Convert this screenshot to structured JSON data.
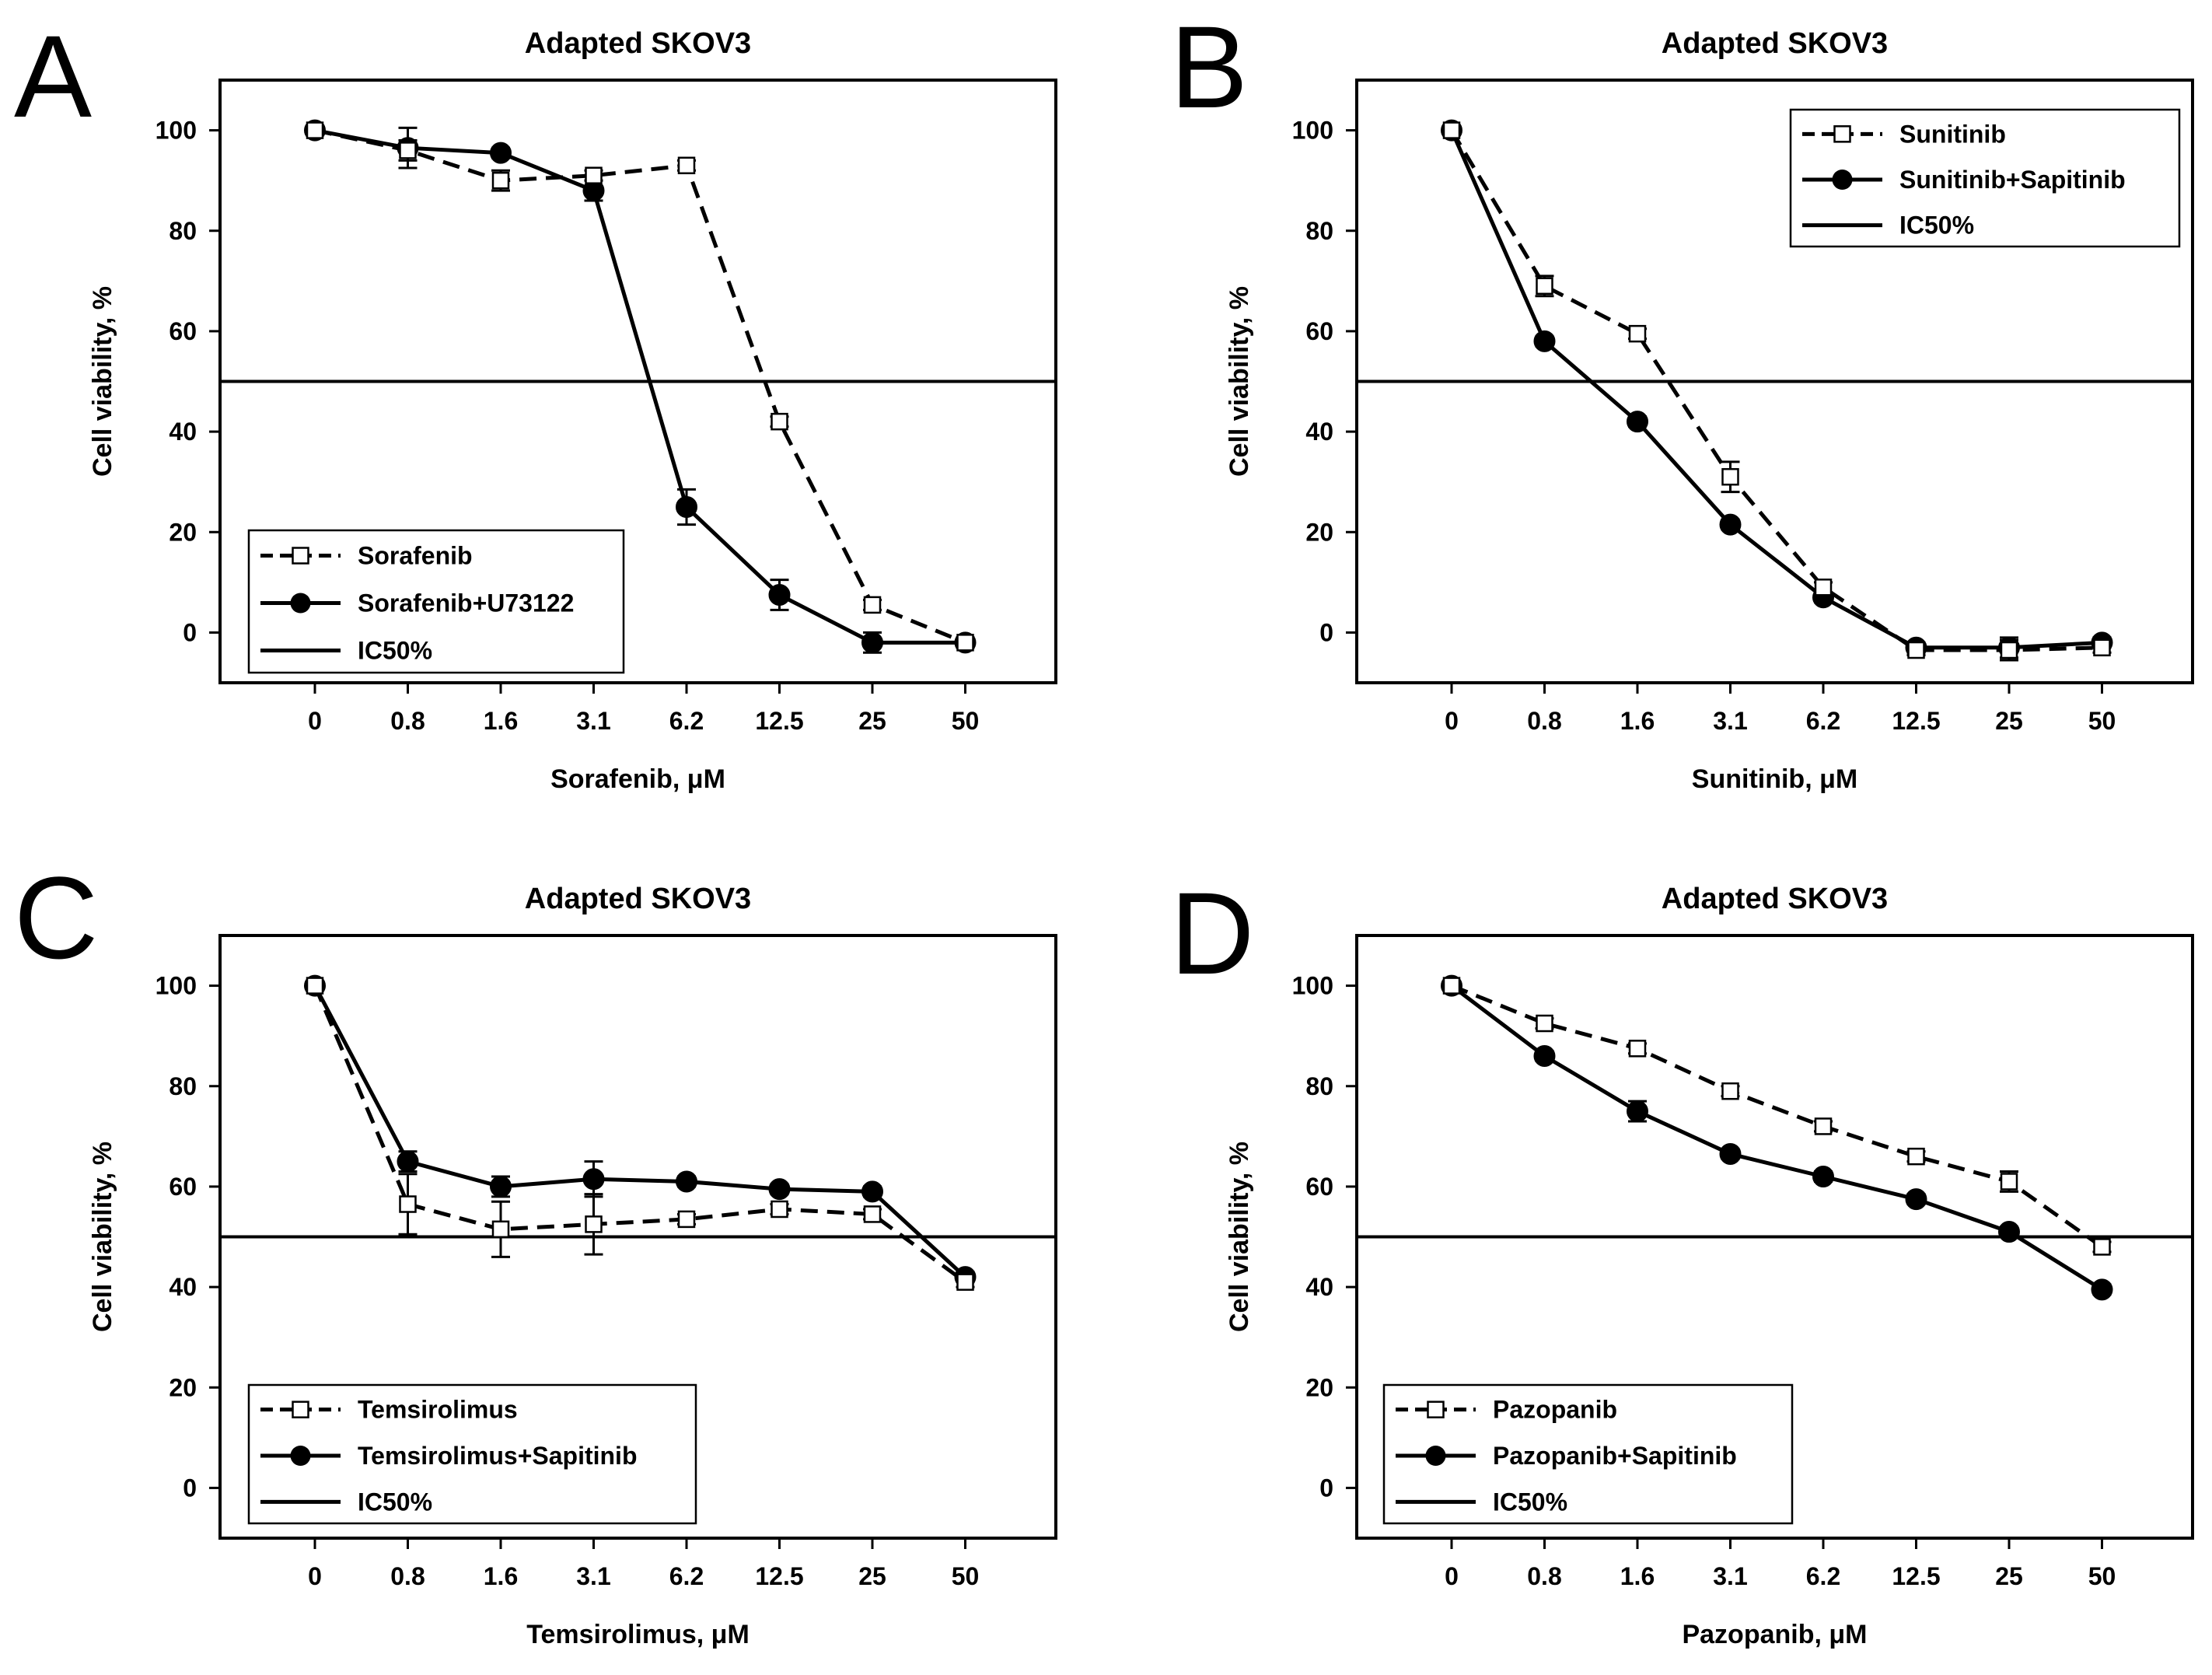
{
  "figure": {
    "panels": [
      "A",
      "B",
      "C",
      "D"
    ]
  },
  "colors": {
    "line": "#000000",
    "open_marker_fill": "#ffffff",
    "filled_marker_fill": "#000000",
    "background": "#ffffff"
  },
  "chart_data": [
    {
      "panel": "A",
      "type": "line",
      "title": "Adapted SKOV3",
      "xlabel": "Sorafenib, μM",
      "ylabel": "Cell viability, %",
      "categories": [
        "0",
        "0.8",
        "1.6",
        "3.1",
        "6.2",
        "12.5",
        "25",
        "50"
      ],
      "ylim": [
        -10,
        110
      ],
      "yticks": [
        0,
        20,
        40,
        60,
        80,
        100
      ],
      "ic50": 50,
      "legend_position": "bottom-left",
      "legend": [
        "Sorafenib",
        "Sorafenib+U73122",
        "IC50%"
      ],
      "series": [
        {
          "name": "Sorafenib",
          "style": "dashed",
          "marker": "open-square",
          "values": [
            100,
            96,
            90,
            91,
            93,
            42,
            5.5,
            -2
          ],
          "errors": [
            0,
            2,
            2,
            1,
            1,
            1,
            1,
            1
          ]
        },
        {
          "name": "Sorafenib+U73122",
          "style": "solid",
          "marker": "filled-circle",
          "values": [
            100,
            96.5,
            95.5,
            88,
            25,
            7.5,
            -2,
            -2
          ],
          "errors": [
            0,
            4,
            1,
            2,
            3.5,
            3,
            2,
            1
          ]
        }
      ]
    },
    {
      "panel": "B",
      "type": "line",
      "title": "Adapted SKOV3",
      "xlabel": "Sunitinib, μM",
      "ylabel": "Cell viability, %",
      "categories": [
        "0",
        "0.8",
        "1.6",
        "3.1",
        "6.2",
        "12.5",
        "25",
        "50"
      ],
      "ylim": [
        -10,
        110
      ],
      "yticks": [
        0,
        20,
        40,
        60,
        80,
        100
      ],
      "ic50": 50,
      "legend_position": "top-right",
      "legend": [
        "Sunitinib",
        "Sunitinib+Sapitinib",
        "IC50%"
      ],
      "series": [
        {
          "name": "Sunitinib",
          "style": "dashed",
          "marker": "open-square",
          "values": [
            100,
            69,
            59.5,
            31,
            9,
            -3.5,
            -3.5,
            -3
          ],
          "errors": [
            0,
            2,
            1,
            3,
            1,
            1,
            2,
            1
          ]
        },
        {
          "name": "Sunitinib+Sapitinib",
          "style": "solid",
          "marker": "filled-circle",
          "values": [
            100,
            58,
            42,
            21.5,
            7,
            -3,
            -3,
            -2
          ],
          "errors": [
            0,
            1,
            1,
            1,
            1,
            1,
            2,
            1
          ]
        }
      ]
    },
    {
      "panel": "C",
      "type": "line",
      "title": "Adapted SKOV3",
      "xlabel": "Temsirolimus, μM",
      "ylabel": "Cell viability, %",
      "categories": [
        "0",
        "0.8",
        "1.6",
        "3.1",
        "6.2",
        "12.5",
        "25",
        "50"
      ],
      "ylim": [
        -10,
        110
      ],
      "yticks": [
        0,
        20,
        40,
        60,
        80,
        100
      ],
      "ic50": 50,
      "legend_position": "bottom-left",
      "legend": [
        "Temsirolimus",
        "Temsirolimus+Sapitinib",
        "IC50%"
      ],
      "series": [
        {
          "name": "Temsirolimus",
          "style": "dashed",
          "marker": "open-square",
          "values": [
            100,
            56.5,
            51.5,
            52.5,
            53.5,
            55.5,
            54.5,
            41
          ],
          "errors": [
            0,
            6,
            5.5,
            6,
            1,
            1,
            1,
            1
          ]
        },
        {
          "name": "Temsirolimus+Sapitinib",
          "style": "solid",
          "marker": "filled-circle",
          "values": [
            100,
            65,
            60,
            61.5,
            61,
            59.5,
            59,
            42
          ],
          "errors": [
            0,
            2,
            2,
            3.5,
            1,
            1,
            1,
            1
          ]
        }
      ]
    },
    {
      "panel": "D",
      "type": "line",
      "title": "Adapted SKOV3",
      "xlabel": "Pazopanib, μM",
      "ylabel": "Cell viability, %",
      "categories": [
        "0",
        "0.8",
        "1.6",
        "3.1",
        "6.2",
        "12.5",
        "25",
        "50"
      ],
      "ylim": [
        -10,
        110
      ],
      "yticks": [
        0,
        20,
        40,
        60,
        80,
        100
      ],
      "ic50": 50,
      "legend_position": "bottom-left",
      "legend": [
        "Pazopanib",
        "Pazopanib+Sapitinib",
        "IC50%"
      ],
      "series": [
        {
          "name": "Pazopanib",
          "style": "dashed",
          "marker": "open-square",
          "values": [
            100,
            92.5,
            87.5,
            79,
            72,
            66,
            61,
            48
          ],
          "errors": [
            0,
            1,
            1,
            1,
            1,
            1,
            2,
            1
          ]
        },
        {
          "name": "Pazopanib+Sapitinib",
          "style": "solid",
          "marker": "filled-circle",
          "values": [
            100,
            86,
            75,
            66.5,
            62,
            57.5,
            51,
            39.5
          ],
          "errors": [
            0,
            1,
            2,
            1,
            1,
            1,
            1,
            1
          ]
        }
      ]
    }
  ]
}
